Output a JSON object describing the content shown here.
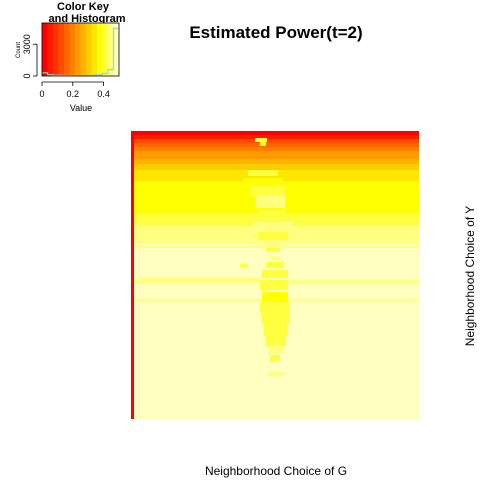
{
  "chart_data": {
    "type": "heatmap",
    "title": "Estimated Power(t=2)",
    "xlabel": "Neighborhood Choice of G",
    "ylabel": "Neighborhood Choice of Y",
    "color_key": {
      "title_line1": "Color Key",
      "title_line2": "and Histogram",
      "xlabel": "Value",
      "ylabel": "Count",
      "x_ticks": [
        "0",
        "0.2",
        "0.4"
      ],
      "x_tick_values": [
        0,
        0.2,
        0.4
      ],
      "x_range": [
        0,
        0.5
      ],
      "y_ticks": [
        "0",
        "3000"
      ],
      "y_tick_values": [
        0,
        3000
      ],
      "y_range": [
        0,
        5000
      ],
      "colors": [
        "#ff0000",
        "#ff1a00",
        "#ff3300",
        "#ff4d00",
        "#ff6600",
        "#ff8000",
        "#ff9900",
        "#ffb300",
        "#ffcc00",
        "#ffe600",
        "#ffff00",
        "#ffff40",
        "#ffff80",
        "#ffffc0"
      ],
      "histogram_counts": [
        300,
        120,
        80,
        60,
        50,
        50,
        40,
        50,
        60,
        80,
        120,
        250,
        600,
        4500
      ]
    },
    "value_range": [
      0,
      0.5
    ],
    "legend": "top-left",
    "grid": false
  }
}
